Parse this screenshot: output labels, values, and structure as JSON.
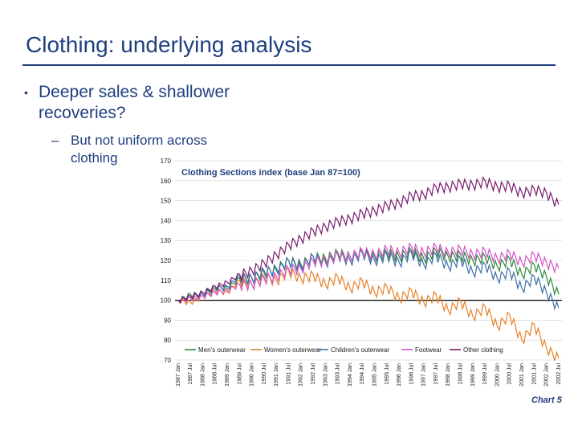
{
  "slide": {
    "title": "Clothing: underlying analysis",
    "bullet": "Deeper sales & shallower recoveries?",
    "bullet_marker": "•",
    "sub_bullet": "But not uniform across clothing",
    "sub_marker": "–",
    "chart_caption": "Chart 5"
  },
  "colors": {
    "title": "#1f3f7f",
    "mens": "#2e8b3a",
    "womens": "#e8822a",
    "childrens": "#3f6fa8",
    "footwear": "#d454c8",
    "other": "#7a1a6e",
    "baseline": "#000000",
    "grid": "#d0d0d0"
  },
  "chart_data": {
    "type": "line",
    "title": "Clothing Sections index (base Jan 87=100)",
    "ylim": [
      70,
      170
    ],
    "yticks": [
      70,
      80,
      90,
      100,
      110,
      120,
      130,
      140,
      150,
      160,
      170
    ],
    "baseline": 100,
    "grid": "horizontal",
    "legend_position": "bottom",
    "x_labels": [
      "1987 Jan",
      "1987 Jul",
      "1988 Jan",
      "1988 Jul",
      "1989 Jan",
      "1989 Jul",
      "1990 Jan",
      "1990 Jul",
      "1991 Jan",
      "1991 Jul",
      "1992 Jan",
      "1992 Jul",
      "1993 Jan",
      "1993 Jul",
      "1994 Jan",
      "1994 Jul",
      "1995 Jan",
      "1995 Jul",
      "1996 Jan",
      "1996 Jul",
      "1997 Jan",
      "1997 Jul",
      "1998 Jan",
      "1998 Jul",
      "1999 Jan",
      "1999 Jul",
      "2000 Jan",
      "2000 Jul",
      "2001 Jan",
      "2001 Jul",
      "2002 Jan",
      "2002 Jul"
    ],
    "series": [
      {
        "name": "Men's outerwear",
        "color_key": "mens",
        "values": [
          100,
          103,
          103,
          107,
          106,
          111,
          111,
          114,
          116,
          120,
          118,
          122,
          121,
          124,
          122,
          124,
          122,
          124,
          122,
          125,
          121,
          125,
          122,
          123,
          120,
          122,
          117,
          121,
          113,
          118,
          112,
          103
        ]
      },
      {
        "name": "Women's outerwear",
        "color_key": "womens",
        "values": [
          100,
          99,
          102,
          105,
          104,
          110,
          108,
          112,
          110,
          115,
          111,
          113,
          108,
          112,
          106,
          110,
          104,
          107,
          101,
          105,
          99,
          103,
          95,
          100,
          92,
          97,
          87,
          93,
          80,
          88,
          76,
          71
        ]
      },
      {
        "name": "Children's outerwear",
        "color_key": "childrens",
        "values": [
          100,
          102,
          103,
          106,
          107,
          112,
          111,
          115,
          115,
          120,
          117,
          122,
          119,
          123,
          120,
          124,
          120,
          123,
          119,
          124,
          118,
          123,
          117,
          121,
          114,
          118,
          111,
          115,
          106,
          112,
          104,
          96
        ]
      },
      {
        "name": "Footwear",
        "color_key": "footwear",
        "values": [
          100,
          101,
          102,
          104,
          105,
          108,
          108,
          111,
          112,
          116,
          116,
          120,
          120,
          123,
          122,
          125,
          123,
          126,
          124,
          127,
          124,
          127,
          124,
          126,
          123,
          125,
          121,
          124,
          119,
          123,
          119,
          116
        ]
      },
      {
        "name": "Other clothing",
        "color_key": "other",
        "values": [
          100,
          102,
          104,
          107,
          109,
          113,
          115,
          119,
          123,
          128,
          131,
          135,
          137,
          140,
          141,
          144,
          145,
          148,
          149,
          153,
          153,
          157,
          157,
          159,
          158,
          160,
          157,
          158,
          154,
          156,
          154,
          148
        ]
      }
    ]
  }
}
